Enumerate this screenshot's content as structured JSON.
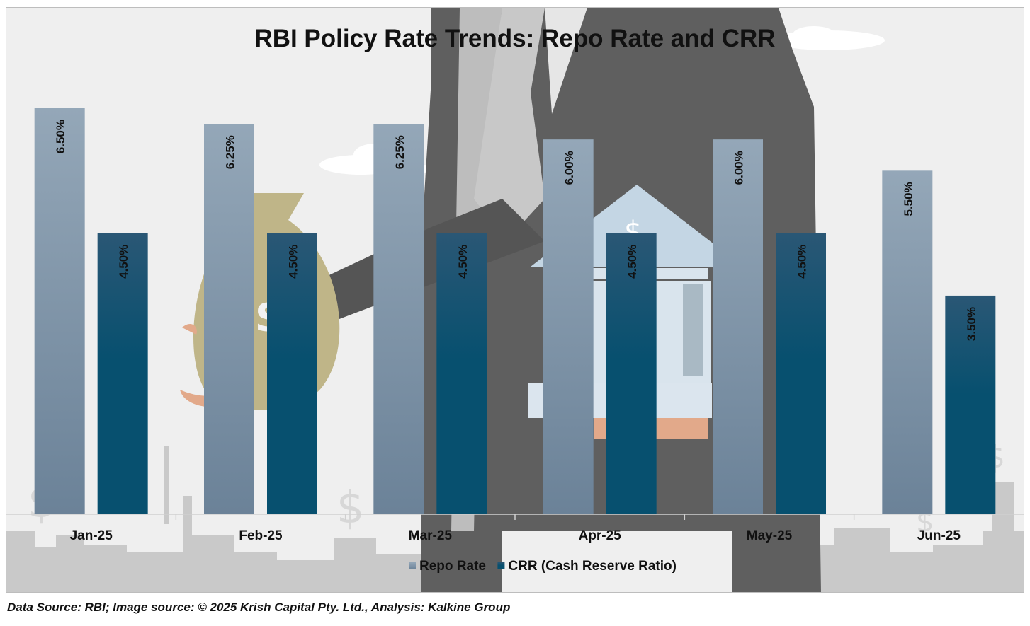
{
  "chart_data": {
    "type": "bar",
    "title": "RBI Policy Rate Trends: Repo Rate and CRR",
    "categories": [
      "Jan-25",
      "Feb-25",
      "Mar-25",
      "Apr-25",
      "May-25",
      "Jun-25"
    ],
    "series": [
      {
        "name": "Repo Rate",
        "values": [
          6.5,
          6.25,
          6.25,
          6.0,
          6.0,
          5.5
        ],
        "labels": [
          "6.50%",
          "6.25%",
          "6.25%",
          "6.00%",
          "6.00%",
          "5.50%"
        ]
      },
      {
        "name": "CRR (Cash Reserve Ratio)",
        "values": [
          4.5,
          4.5,
          4.5,
          4.5,
          4.5,
          3.5
        ],
        "labels": [
          "4.50%",
          "4.50%",
          "4.50%",
          "4.50%",
          "4.50%",
          "3.50%"
        ]
      }
    ],
    "ylim": [
      0,
      6.5
    ],
    "xlabel": "",
    "ylabel": "",
    "legend_position": "bottom",
    "grid": false
  },
  "colors": {
    "repo_top": "#94a7b8",
    "repo_bottom": "#6b8298",
    "crr_top": "#2a5775",
    "crr_bottom": "#07506f",
    "suit": "#5f5f5f",
    "bag": "#bfb588",
    "hand": "#e2a98a",
    "building": "#c4d6e4"
  },
  "footer": {
    "source_note": "Data Source: RBI; Image source: © 2025 Krish Capital Pty. Ltd., Analysis: Kalkine Group"
  }
}
